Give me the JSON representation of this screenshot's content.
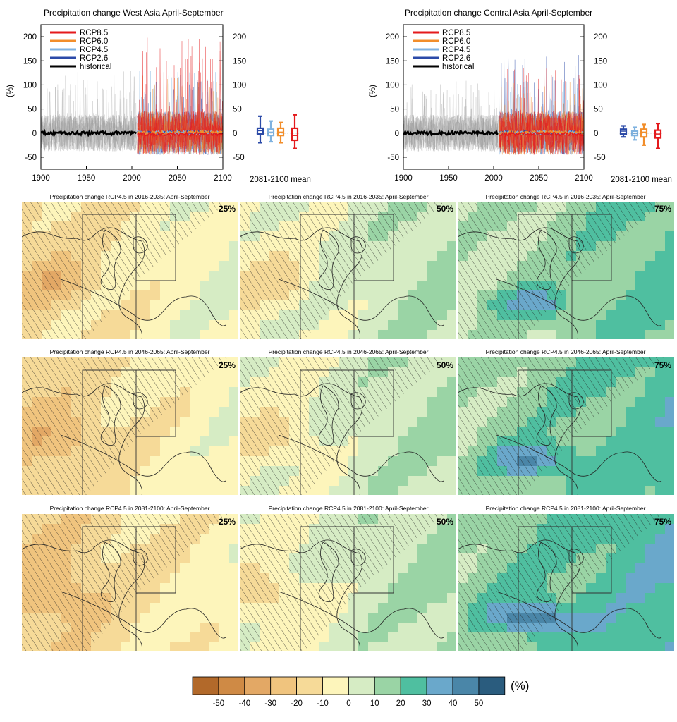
{
  "colors": {
    "rcp85": "#e41a1c",
    "rcp60": "#f28e2b",
    "rcp45": "#7fb2e0",
    "rcp26": "#2b4aa8",
    "historical": "#000000",
    "historical_spread": "#9a9a9a"
  },
  "chart_data": [
    {
      "type": "line",
      "title": "Precipitation change West Asia April-September",
      "ylabel": "(%)",
      "xlim": [
        1900,
        2100
      ],
      "ylim": [
        -75,
        225
      ],
      "x_ticks": [
        1900,
        1950,
        2000,
        2050,
        2100
      ],
      "x_tick_labels": [
        "1900",
        "1950",
        "2000",
        "2050",
        "2100"
      ],
      "y_ticks": [
        -50,
        0,
        50,
        100,
        150,
        200
      ],
      "y_tick_labels": [
        "-50",
        "0",
        "50",
        "100",
        "150",
        "200"
      ],
      "legend_position": "top-left",
      "series": [
        {
          "name": "RCP8.5",
          "key": "rcp85",
          "x_range": [
            2006,
            2100
          ],
          "spread": [
            -60,
            200
          ]
        },
        {
          "name": "RCP6.0",
          "key": "rcp60",
          "x_range": [
            2006,
            2100
          ],
          "spread": [
            -55,
            120
          ]
        },
        {
          "name": "RCP4.5",
          "key": "rcp45",
          "x_range": [
            2006,
            2100
          ],
          "spread": [
            -55,
            130
          ]
        },
        {
          "name": "RCP2.6",
          "key": "rcp26",
          "x_range": [
            2006,
            2100
          ],
          "spread": [
            -55,
            110
          ]
        },
        {
          "name": "historical",
          "key": "historical",
          "x_range": [
            1900,
            2005
          ],
          "spread": [
            -60,
            135
          ]
        }
      ],
      "boxplot_label": "2081-2100 mean",
      "boxplots": [
        {
          "key": "rcp26",
          "min": -20,
          "q1": -2,
          "median": 5,
          "q3": 10,
          "max": 35
        },
        {
          "key": "rcp45",
          "min": -18,
          "q1": -5,
          "median": 2,
          "q3": 8,
          "max": 25
        },
        {
          "key": "rcp60",
          "min": -20,
          "q1": -5,
          "median": 2,
          "q3": 10,
          "max": 22
        },
        {
          "key": "rcp85",
          "min": -32,
          "q1": -15,
          "median": -5,
          "q3": 10,
          "max": 38
        }
      ]
    },
    {
      "type": "line",
      "title": "Precipitation change Central Asia April-September",
      "ylabel": "(%)",
      "xlim": [
        1900,
        2100
      ],
      "ylim": [
        -75,
        225
      ],
      "x_ticks": [
        1900,
        1950,
        2000,
        2050,
        2100
      ],
      "x_tick_labels": [
        "1900",
        "1950",
        "2000",
        "2050",
        "2100"
      ],
      "y_ticks": [
        -50,
        0,
        50,
        100,
        150,
        200
      ],
      "y_tick_labels": [
        "-50",
        "0",
        "50",
        "100",
        "150",
        "200"
      ],
      "legend_position": "top-left",
      "series": [
        {
          "name": "RCP8.5",
          "key": "rcp85",
          "x_range": [
            2006,
            2100
          ],
          "spread": [
            -55,
            140
          ]
        },
        {
          "name": "RCP6.0",
          "key": "rcp60",
          "x_range": [
            2006,
            2100
          ],
          "spread": [
            -50,
            110
          ]
        },
        {
          "name": "RCP4.5",
          "key": "rcp45",
          "x_range": [
            2006,
            2100
          ],
          "spread": [
            -50,
            110
          ]
        },
        {
          "name": "RCP2.6",
          "key": "rcp26",
          "x_range": [
            2006,
            2100
          ],
          "spread": [
            -50,
            175
          ]
        },
        {
          "name": "historical",
          "key": "historical",
          "x_range": [
            1900,
            2005
          ],
          "spread": [
            -55,
            110
          ]
        }
      ],
      "boxplot_label": "2081-2100 mean",
      "boxplots": [
        {
          "key": "rcp26",
          "min": -8,
          "q1": -2,
          "median": 4,
          "q3": 8,
          "max": 15
        },
        {
          "key": "rcp45",
          "min": -14,
          "q1": -5,
          "median": -1,
          "q3": 4,
          "max": 12
        },
        {
          "key": "rcp60",
          "min": -25,
          "q1": -8,
          "median": 2,
          "q3": 8,
          "max": 18
        },
        {
          "key": "rcp85",
          "min": -32,
          "q1": -10,
          "median": -2,
          "q3": 6,
          "max": 20
        }
      ]
    },
    {
      "type": "heatmap",
      "map_rows": [
        {
          "title": "Precipitation change RCP4.5 in 2016-2035: April-September"
        },
        {
          "title": "Precipitation change RCP4.5 in 2046-2065: April-September"
        },
        {
          "title": "Precipitation change RCP4.5 in 2081-2100: April-September"
        }
      ],
      "percentiles": [
        "25%",
        "50%",
        "75%"
      ],
      "percentile_bias": [
        -12,
        2,
        16
      ],
      "period_factor": [
        0.8,
        1.0,
        1.2
      ],
      "colorbar": {
        "unit": "(%)",
        "tick_labels": [
          "-50",
          "-40",
          "-30",
          "-20",
          "-10",
          "0",
          "10",
          "20",
          "30",
          "40",
          "50"
        ],
        "colors": [
          "#b2692a",
          "#cf8a45",
          "#e3a865",
          "#f0c47e",
          "#f6da98",
          "#fdf5bb",
          "#d6ecc4",
          "#9ad4a5",
          "#4fbfa0",
          "#6aa8cb",
          "#4a86a8",
          "#2a5c7e"
        ]
      }
    }
  ]
}
